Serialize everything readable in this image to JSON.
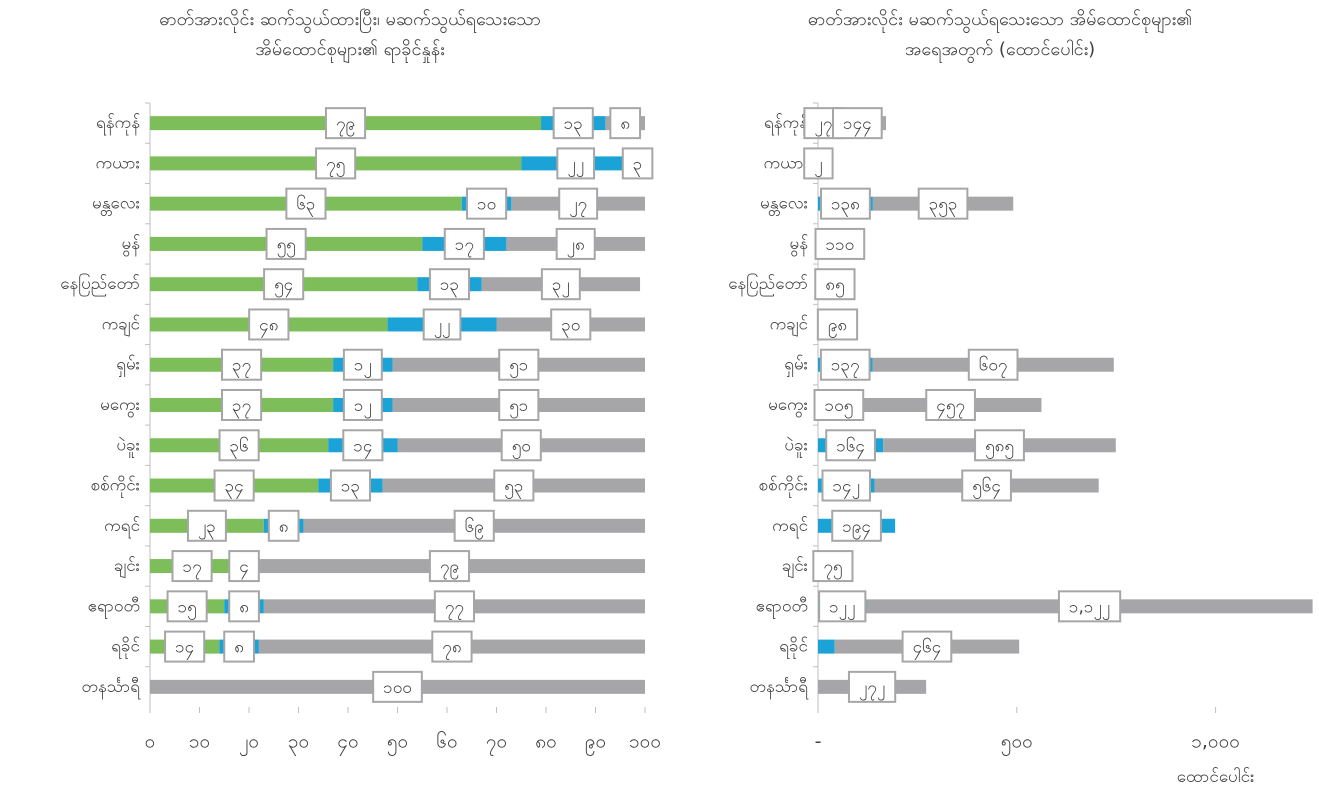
{
  "chart_data": [
    {
      "type": "stacked-barh",
      "title": [
        "ဓာတ်အားလိုင်း ဆက်သွယ်ထားပြီး၊ မဆက်သွယ်ရသေးသော",
        "အိမ်ထောင်စုများ၏ ရာခိုင်နှုန်း"
      ],
      "categories": [
        "ရန်ကုန်",
        "ကယား",
        "မန္တလေး",
        "မွန်",
        "နေပြည်တော်",
        "ကချင်",
        "ရှမ်း",
        "မကွေး",
        "ပဲခူး",
        "စစ်ကိုင်း",
        "ကရင်",
        "ချင်း",
        "ဧရာဝတီ",
        "ရခိုင်",
        "တနင်္သာရီ"
      ],
      "series": [
        {
          "color": "#7dbd5a",
          "values": [
            79,
            75,
            63,
            55,
            54,
            48,
            37,
            37,
            36,
            34,
            23,
            17,
            15,
            14,
            null
          ],
          "value_labels": [
            "၇၉",
            "၇၅",
            "၆၃",
            "၅၅",
            "၅၄",
            "၄၈",
            "၃၇",
            "၃၇",
            "၃၆",
            "၃၄",
            "၂၃",
            "၁၇",
            "၁၅",
            "၁၄",
            null
          ]
        },
        {
          "color": "#1ba2d6",
          "values": [
            13,
            22,
            10,
            17,
            13,
            22,
            12,
            12,
            14,
            13,
            8,
            4,
            8,
            8,
            null
          ],
          "value_labels": [
            "၁၃",
            "၂၂",
            "၁၀",
            "၁၇",
            "၁၃",
            "၂၂",
            "၁၂",
            "၁၂",
            "၁၄",
            "၁၃",
            "၈",
            "၄",
            "၈",
            "၈",
            null
          ]
        },
        {
          "color": "#a6a6a8",
          "values": [
            8,
            3,
            27,
            28,
            32,
            30,
            51,
            51,
            50,
            53,
            69,
            79,
            77,
            78,
            100
          ],
          "value_labels": [
            "၈",
            "၃",
            "၂၇",
            "၂၈",
            "၃၂",
            "၃၀",
            "၅၁",
            "၅၁",
            "၅၀",
            "၅၃",
            "၆၉",
            "၇၉",
            "၇၇",
            "၇၈",
            "၁၀၀"
          ]
        }
      ],
      "xlim": [
        0,
        100
      ],
      "xticks": [
        {
          "value": 0,
          "label": "၀"
        },
        {
          "value": 10,
          "label": "၁၀"
        },
        {
          "value": 20,
          "label": "၂၀"
        },
        {
          "value": 30,
          "label": "၃၀"
        },
        {
          "value": 40,
          "label": "၄၀"
        },
        {
          "value": 50,
          "label": "၅၀"
        },
        {
          "value": 60,
          "label": "၆၀"
        },
        {
          "value": 70,
          "label": "၇၀"
        },
        {
          "value": 80,
          "label": "၈၀"
        },
        {
          "value": 90,
          "label": "၉၀"
        },
        {
          "value": 100,
          "label": "၁၀၀"
        }
      ]
    },
    {
      "type": "stacked-barh",
      "title": [
        "ဓာတ်အားလိုင်း မဆက်သွယ်ရသေးသော အိမ်ထောင်စုများ၏",
        "အရေအတွက် (ထောင်ပေါင်း)"
      ],
      "x_label": "ထောင်ပေါင်း",
      "categories": [
        "ရန်ကုန်",
        "ကယား",
        "မန္တလေး",
        "မွန်",
        "နေပြည်တော်",
        "ကချင်",
        "ရှမ်း",
        "မကွေး",
        "ပဲခူး",
        "စစ်ကိုင်း",
        "ကရင်",
        "ချင်း",
        "ဧရာဝတီ",
        "ရခိုင်",
        "တနင်္သာရီ"
      ],
      "series": [
        {
          "color": "#1ba2d6",
          "values": [
            27,
            2,
            138,
            110,
            85,
            98,
            137,
            105,
            164,
            142,
            194,
            75,
            122,
            42,
            null
          ],
          "value_labels": [
            "၂၇",
            "၂",
            "၁၃၈",
            "၁၁၀",
            "၈၅",
            "၉၈",
            "၁၃၇",
            "၁၀၅",
            "၁၆၄",
            "၁၄၂",
            "၁၉၄",
            "၇၅",
            "၁၂၂",
            null,
            null
          ]
        },
        {
          "color": "#a6a6a8",
          "values": [
            144,
            null,
            353,
            null,
            null,
            null,
            607,
            457,
            585,
            564,
            null,
            null,
            1122,
            464,
            272
          ],
          "value_labels": [
            "၁၄၄",
            null,
            "၃၅၃",
            null,
            null,
            null,
            "၆၀၇",
            "၄၅၇",
            "၅၈၅",
            "၅၆၄",
            null,
            null,
            "၁,၁၂၂",
            "၄၆၄",
            "၂၇၂"
          ]
        }
      ],
      "xlim": [
        0,
        1245
      ],
      "xticks": [
        {
          "value": 0,
          "label": "-"
        },
        {
          "value": 500,
          "label": "၅၀၀"
        },
        {
          "value": 1000,
          "label": "၁,၀၀၀"
        }
      ]
    }
  ]
}
